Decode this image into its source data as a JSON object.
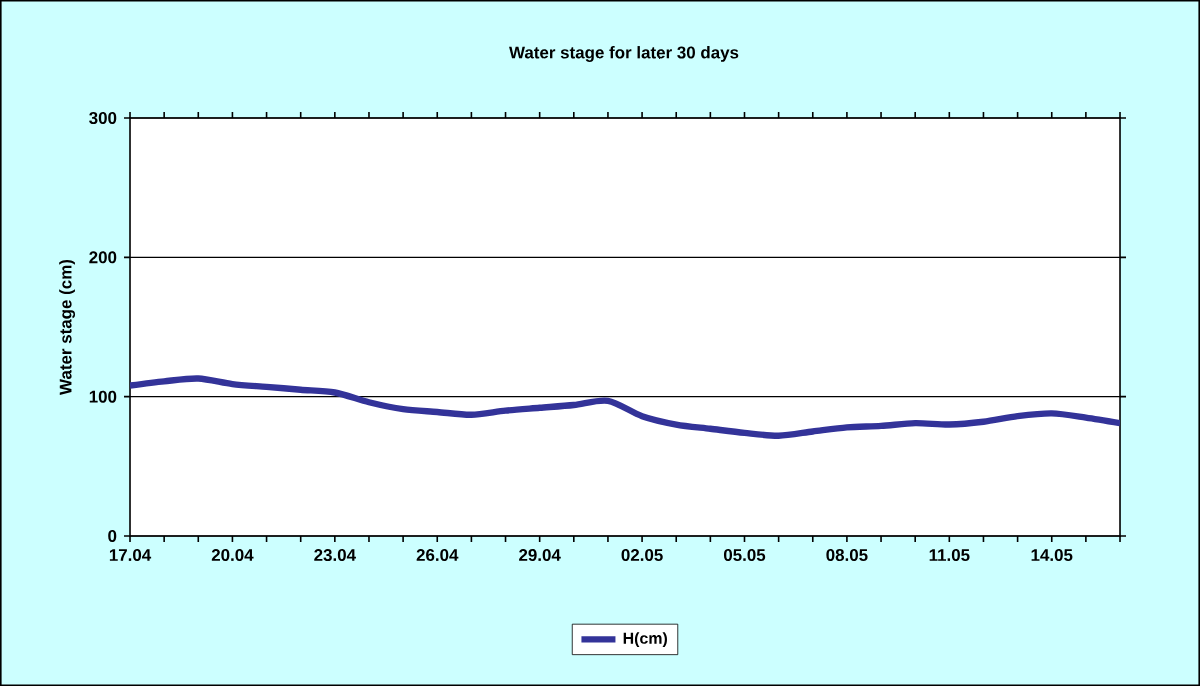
{
  "chart_data": {
    "type": "line",
    "title": "Water stage for later 30 days",
    "ylabel": "Water stage (cm)",
    "categories": [
      "17.04",
      null,
      null,
      "20.04",
      null,
      null,
      "23.04",
      null,
      null,
      "26.04",
      null,
      null,
      "29.04",
      null,
      null,
      "02.05",
      null,
      null,
      "05.05",
      null,
      null,
      "08.05",
      null,
      null,
      "11.05",
      null,
      null,
      "14.05",
      null,
      null
    ],
    "series": [
      {
        "name": "H(cm)",
        "color": "#333399",
        "values": [
          108,
          111,
          113,
          109,
          107,
          105,
          103,
          96,
          91,
          89,
          87,
          90,
          92,
          94,
          97,
          86,
          80,
          77,
          74,
          72,
          75,
          78,
          79,
          81,
          80,
          82,
          86,
          88,
          85,
          81
        ]
      }
    ],
    "ylim": [
      0,
      300
    ],
    "yticks": [
      0,
      100,
      200,
      300
    ],
    "grid": "y",
    "legend": "bottom",
    "marker": "none",
    "line_style": "solid"
  }
}
